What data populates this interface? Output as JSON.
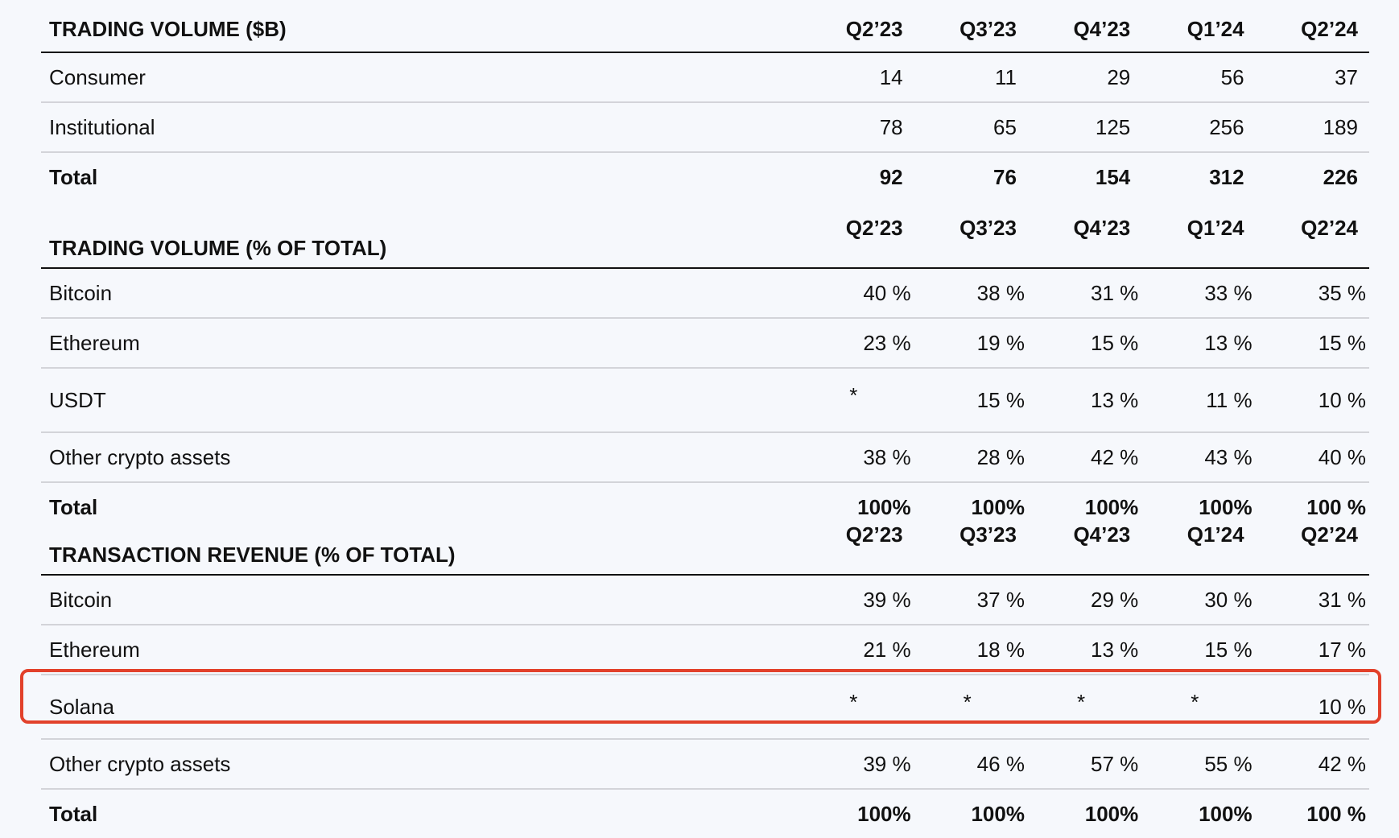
{
  "sections": [
    {
      "title": "TRADING VOLUME ($B)",
      "quarters": [
        "Q2’23",
        "Q3’23",
        "Q4’23",
        "Q1’24",
        "Q2’24"
      ],
      "format": "number",
      "rows": [
        {
          "label": "Consumer",
          "values": [
            "14",
            "11",
            "29",
            "56",
            "37"
          ]
        },
        {
          "label": "Institutional",
          "values": [
            "78",
            "65",
            "125",
            "256",
            "189"
          ]
        },
        {
          "label": "Total",
          "values": [
            "92",
            "76",
            "154",
            "312",
            "226"
          ],
          "bold": true
        }
      ]
    },
    {
      "title": "TRADING VOLUME (% OF TOTAL)",
      "quarters": [
        "Q2’23",
        "Q3’23",
        "Q4’23",
        "Q1’24",
        "Q2’24"
      ],
      "format": "percent",
      "rows": [
        {
          "label": "Bitcoin",
          "values": [
            "40 %",
            "38 %",
            "31 %",
            "33 %",
            "35 %"
          ]
        },
        {
          "label": "Ethereum",
          "values": [
            "23 %",
            "19 %",
            "15 %",
            "13 %",
            "15 %"
          ]
        },
        {
          "label": "USDT",
          "values": [
            "*",
            "15 %",
            "13 %",
            "11 %",
            "10 %"
          ]
        },
        {
          "label": "Other crypto assets",
          "values": [
            "38 %",
            "28 %",
            "42 %",
            "43 %",
            "40 %"
          ]
        },
        {
          "label": "Total",
          "values": [
            "100%",
            "100%",
            "100%",
            "100%",
            "100 %"
          ],
          "bold": true
        }
      ]
    },
    {
      "title": "TRANSACTION REVENUE (% OF TOTAL)",
      "quarters": [
        "Q2’23",
        "Q3’23",
        "Q4’23",
        "Q1’24",
        "Q2’24"
      ],
      "format": "percent",
      "rows": [
        {
          "label": "Bitcoin",
          "values": [
            "39 %",
            "37 %",
            "29 %",
            "30 %",
            "31 %"
          ]
        },
        {
          "label": "Ethereum",
          "values": [
            "21 %",
            "18 %",
            "13 %",
            "15 %",
            "17 %"
          ]
        },
        {
          "label": "Solana",
          "values": [
            "*",
            "*",
            "*",
            "*",
            "10 %"
          ],
          "highlighted": true
        },
        {
          "label": "Other crypto assets",
          "values": [
            "39 %",
            "46 %",
            "57 %",
            "55 %",
            "42 %"
          ]
        },
        {
          "label": "Total",
          "values": [
            "100%",
            "100%",
            "100%",
            "100%",
            "100 %"
          ],
          "bold": true
        }
      ]
    }
  ],
  "highlight_color": "#e2412b"
}
